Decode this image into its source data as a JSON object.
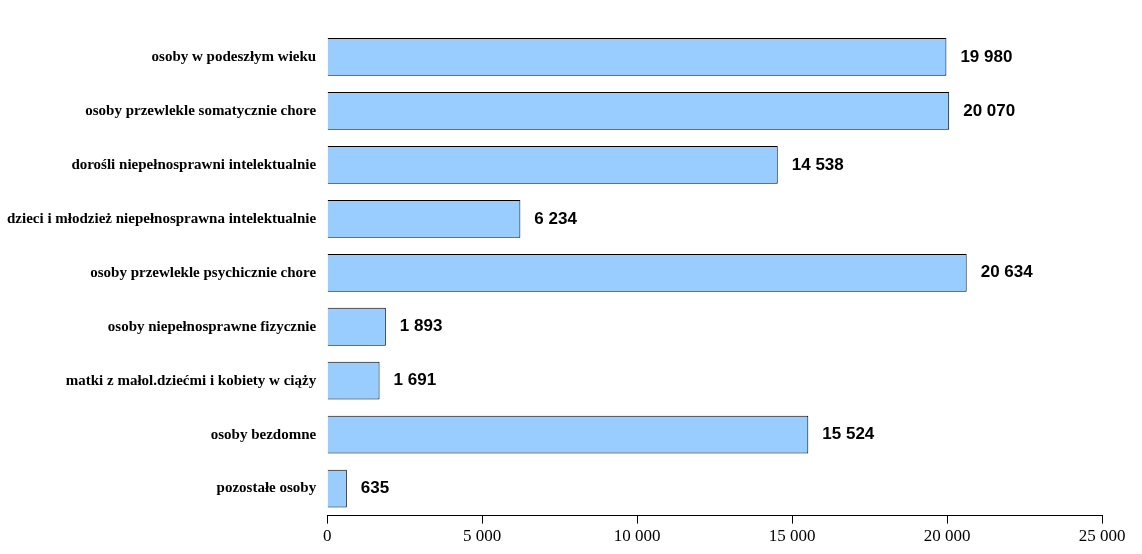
{
  "chart_data": {
    "type": "bar",
    "orientation": "horizontal",
    "categories": [
      "osoby w podeszłym wieku",
      "osoby przewlekle somatycznie chore",
      "dorośli niepełnosprawni intelektualnie",
      "dzieci i młodzież niepełnosprawna intelektualnie",
      "osoby przewlekle psychicznie chore",
      "osoby niepełnosprawne fizycznie",
      "matki z małol.dziećmi i kobiety w ciąży",
      "osoby bezdomne",
      "pozostałe osoby"
    ],
    "values": [
      19980,
      20070,
      14538,
      6234,
      20634,
      1893,
      1691,
      15524,
      635
    ],
    "value_labels": [
      "19 980",
      "20 070",
      "14 538",
      "6 234",
      "20 634",
      "1 893",
      "1 691",
      "15 524",
      "635"
    ],
    "color": "#99ccff",
    "xlim": [
      0,
      25000
    ],
    "xticks": [
      0,
      {
        "value": 5000,
        "label": "5 000"
      },
      {
        "value": 10000,
        "label": "10 000"
      },
      {
        "value": 15000,
        "label": "15 000"
      },
      {
        "value": 20000,
        "label": "20 000"
      },
      {
        "value": 25000,
        "label": "25 000"
      }
    ],
    "grid": false,
    "legend": false
  }
}
